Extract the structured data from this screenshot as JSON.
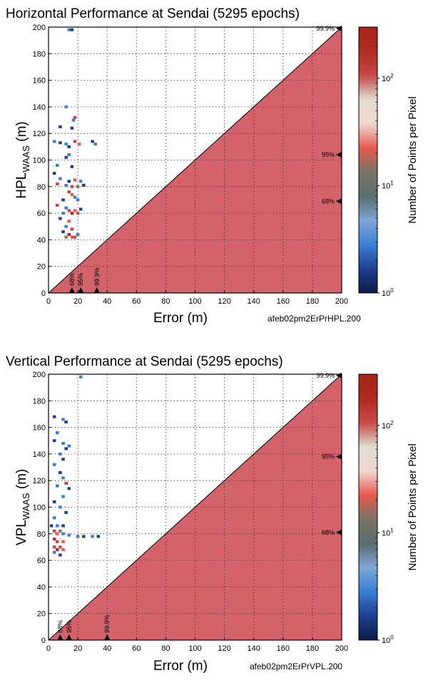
{
  "chart_data": [
    {
      "type": "heatmap",
      "title": "Horizontal Performance at Sendai (5295 epochs)",
      "xlabel": "Error (m)",
      "ylabel_main": "HPL",
      "ylabel_sub": "WAAS",
      "ylabel_unit": " (m)",
      "file_label": "afeb02pm2ErPrHPL.200",
      "xlim": [
        0,
        200
      ],
      "ylim": [
        0,
        200
      ],
      "xticks": [
        0,
        20,
        40,
        60,
        80,
        100,
        120,
        140,
        160,
        180,
        200
      ],
      "yticks": [
        0,
        20,
        40,
        60,
        80,
        100,
        120,
        140,
        160,
        180,
        200
      ],
      "grid": true,
      "diagonal": "y = x",
      "fill_region": "y < x",
      "fill_color": "#d4626a",
      "colorbar": {
        "label": "Number of Points per Pixel",
        "scale": "log",
        "range": [
          1,
          300
        ],
        "ticks": [
          {
            "v": 1,
            "base": "10",
            "exp": "0"
          },
          {
            "v": 10,
            "base": "10",
            "exp": "1"
          },
          {
            "v": 100,
            "base": "10",
            "exp": "2"
          }
        ],
        "colors": [
          "#0d1c4a",
          "#1e3f90",
          "#3b7fd4",
          "#7fa6d8",
          "#5a6e6e",
          "#7a7466",
          "#e8584f",
          "#f0d8d0",
          "#e0dcd0",
          "#c84848",
          "#b02c20",
          "#a82418"
        ]
      },
      "error_markers": [
        {
          "label": "68%",
          "value": 16
        },
        {
          "label": "95%",
          "value": 22
        },
        {
          "label": "99.9%",
          "value": 33
        }
      ],
      "pl_markers": [
        {
          "label": "95%",
          "value": 104
        },
        {
          "label": "68%",
          "value": 69
        },
        {
          "label": "99.9%",
          "value": 199
        }
      ],
      "cells": [
        [
          12,
          140,
          "#3b7fd4"
        ],
        [
          8,
          125,
          "#1e3f90"
        ],
        [
          16,
          124,
          "#1e3f90"
        ],
        [
          18,
          132,
          "#c84848"
        ],
        [
          17,
          130,
          "#3b7fd4"
        ],
        [
          4,
          114,
          "#3b7fd4"
        ],
        [
          8,
          113,
          "#1e3f90"
        ],
        [
          12,
          112,
          "#3b7fd4"
        ],
        [
          14,
          110,
          "#1e3f90"
        ],
        [
          18,
          114,
          "#c84848"
        ],
        [
          21,
          112,
          "#e8584f"
        ],
        [
          30,
          114,
          "#1e3f90"
        ],
        [
          32,
          112,
          "#3b7fd4"
        ],
        [
          14,
          104,
          "#3b7fd4"
        ],
        [
          12,
          102,
          "#1e3f90"
        ],
        [
          6,
          96,
          "#3b7fd4"
        ],
        [
          16,
          95,
          "#1e3f90"
        ],
        [
          4,
          90,
          "#1e3f90"
        ],
        [
          8,
          86,
          "#3b7fd4"
        ],
        [
          14,
          84,
          "#1e3f90"
        ],
        [
          18,
          85,
          "#e8584f"
        ],
        [
          22,
          84,
          "#3b7fd4"
        ],
        [
          6,
          82,
          "#c84848"
        ],
        [
          12,
          81,
          "#3b7fd4"
        ],
        [
          16,
          80,
          "#c84848"
        ],
        [
          20,
          80,
          "#7a7466"
        ],
        [
          24,
          81,
          "#1e3f90"
        ],
        [
          14,
          76,
          "#c84848"
        ],
        [
          16,
          74,
          "#e8584f"
        ],
        [
          18,
          72,
          "#3b7fd4"
        ],
        [
          10,
          70,
          "#1e3f90"
        ],
        [
          20,
          70,
          "#3b7fd4"
        ],
        [
          6,
          66,
          "#c84848"
        ],
        [
          12,
          64,
          "#3b7fd4"
        ],
        [
          14,
          62,
          "#c84848"
        ],
        [
          18,
          62,
          "#e8584f"
        ],
        [
          22,
          63,
          "#1e3f90"
        ],
        [
          10,
          60,
          "#3b7fd4"
        ],
        [
          16,
          60,
          "#b02c20"
        ],
        [
          20,
          60,
          "#c84848"
        ],
        [
          8,
          56,
          "#1e3f90"
        ],
        [
          14,
          54,
          "#e8584f"
        ],
        [
          12,
          50,
          "#3b7fd4"
        ],
        [
          16,
          48,
          "#c84848"
        ],
        [
          10,
          46,
          "#1e3f90"
        ],
        [
          14,
          44,
          "#b02c20"
        ],
        [
          16,
          42,
          "#e8584f"
        ],
        [
          18,
          42,
          "#c84848"
        ],
        [
          20,
          44,
          "#3b7fd4"
        ],
        [
          12,
          42,
          "#7a7466"
        ],
        [
          14,
          198,
          "#3b7fd4"
        ],
        [
          16,
          198,
          "#1e3f90"
        ]
      ]
    },
    {
      "type": "heatmap",
      "title": "Vertical Performance at Sendai (5295 epochs)",
      "xlabel": "Error (m)",
      "ylabel_main": "VPL",
      "ylabel_sub": "WAAS",
      "ylabel_unit": " (m)",
      "file_label": "afeb02pm2ErPrVPL.200",
      "xlim": [
        0,
        200
      ],
      "ylim": [
        0,
        200
      ],
      "xticks": [
        0,
        20,
        40,
        60,
        80,
        100,
        120,
        140,
        160,
        180,
        200
      ],
      "yticks": [
        0,
        20,
        40,
        60,
        80,
        100,
        120,
        140,
        160,
        180,
        200
      ],
      "grid": true,
      "diagonal": "y = x",
      "fill_region": "y < x",
      "fill_color": "#d4626a",
      "colorbar": {
        "label": "Number of Points per Pixel",
        "scale": "log",
        "range": [
          1,
          300
        ],
        "ticks": [
          {
            "v": 1,
            "base": "10",
            "exp": "0"
          },
          {
            "v": 10,
            "base": "10",
            "exp": "1"
          },
          {
            "v": 100,
            "base": "10",
            "exp": "2"
          }
        ],
        "colors": [
          "#0d1c4a",
          "#1e3f90",
          "#3b7fd4",
          "#7fa6d8",
          "#5a6e6e",
          "#7a7466",
          "#e8584f",
          "#f0d8d0",
          "#e0dcd0",
          "#c84848",
          "#b02c20",
          "#a82418"
        ]
      },
      "error_markers": [
        {
          "label": "68%",
          "value": 8
        },
        {
          "label": "95%",
          "value": 14
        },
        {
          "label": "99.9%",
          "value": 40
        }
      ],
      "pl_markers": [
        {
          "label": "95%",
          "value": 138
        },
        {
          "label": "68%",
          "value": 81
        },
        {
          "label": "99.9%",
          "value": 199
        }
      ],
      "cells": [
        [
          4,
          168,
          "#1e3f90"
        ],
        [
          10,
          166,
          "#3b7fd4"
        ],
        [
          12,
          164,
          "#1e3f90"
        ],
        [
          6,
          156,
          "#3b7fd4"
        ],
        [
          4,
          150,
          "#1e3f90"
        ],
        [
          10,
          148,
          "#3b7fd4"
        ],
        [
          12,
          144,
          "#1e3f90"
        ],
        [
          14,
          146,
          "#3b7fd4"
        ],
        [
          8,
          140,
          "#3b7fd4"
        ],
        [
          10,
          136,
          "#1e3f90"
        ],
        [
          4,
          132,
          "#3b7fd4"
        ],
        [
          8,
          126,
          "#1e3f90"
        ],
        [
          10,
          122,
          "#3b7fd4"
        ],
        [
          12,
          118,
          "#c84848"
        ],
        [
          6,
          116,
          "#3b7fd4"
        ],
        [
          14,
          114,
          "#1e3f90"
        ],
        [
          10,
          108,
          "#3b7fd4"
        ],
        [
          4,
          104,
          "#1e3f90"
        ],
        [
          8,
          100,
          "#3b7fd4"
        ],
        [
          12,
          96,
          "#1e3f90"
        ],
        [
          4,
          92,
          "#3b7fd4"
        ],
        [
          2,
          86,
          "#1e3f90"
        ],
        [
          6,
          86,
          "#3b7fd4"
        ],
        [
          10,
          86,
          "#1e3f90"
        ],
        [
          4,
          82,
          "#c84848"
        ],
        [
          6,
          80,
          "#e8584f"
        ],
        [
          8,
          82,
          "#7a7466"
        ],
        [
          10,
          80,
          "#3b7fd4"
        ],
        [
          14,
          79,
          "#3b7fd4"
        ],
        [
          20,
          78,
          "#3b7fd4"
        ],
        [
          24,
          78,
          "#1e3f90"
        ],
        [
          30,
          78,
          "#3b7fd4"
        ],
        [
          34,
          78,
          "#1e3f90"
        ],
        [
          4,
          76,
          "#b02c20"
        ],
        [
          6,
          74,
          "#c84848"
        ],
        [
          8,
          76,
          "#f0d8d0"
        ],
        [
          10,
          74,
          "#e8584f"
        ],
        [
          4,
          70,
          "#c84848"
        ],
        [
          6,
          68,
          "#b02c20"
        ],
        [
          8,
          70,
          "#c84848"
        ],
        [
          10,
          68,
          "#e8584f"
        ],
        [
          4,
          66,
          "#3b7fd4"
        ],
        [
          8,
          64,
          "#1e3f90"
        ],
        [
          22,
          198,
          "#3b7fd4"
        ]
      ]
    }
  ]
}
